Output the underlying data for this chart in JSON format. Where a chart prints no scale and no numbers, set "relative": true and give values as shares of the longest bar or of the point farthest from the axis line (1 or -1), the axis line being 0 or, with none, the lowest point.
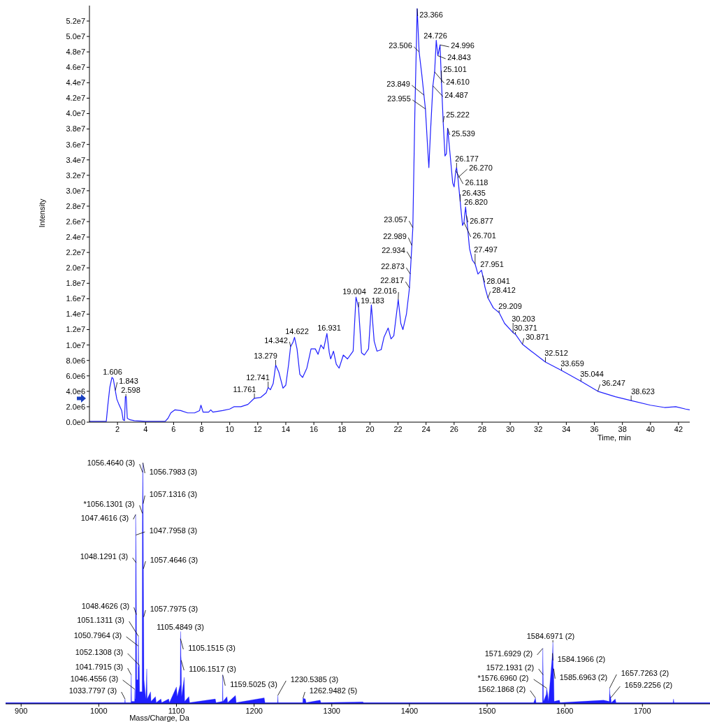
{
  "chart_data": [
    {
      "type": "line",
      "xlabel": "Time, min",
      "ylabel": "Intensity",
      "xlim": [
        0,
        42.8
      ],
      "ylim": [
        0,
        54000000.0
      ],
      "xticks": [
        2,
        4,
        6,
        8,
        10,
        12,
        14,
        16,
        18,
        20,
        22,
        24,
        26,
        28,
        30,
        32,
        34,
        36,
        38,
        40,
        42
      ],
      "yticks": [
        {
          "value": 0,
          "label": "0.0e0"
        },
        {
          "value": 2000000.0,
          "label": "2.0e6"
        },
        {
          "value": 4000000.0,
          "label": "4.0e6"
        },
        {
          "value": 6000000.0,
          "label": "6.0e6"
        },
        {
          "value": 8000000.0,
          "label": "8.0e6"
        },
        {
          "value": 10000000.0,
          "label": "1.0e7"
        },
        {
          "value": 12000000.0,
          "label": "1.2e7"
        },
        {
          "value": 14000000.0,
          "label": "1.4e7"
        },
        {
          "value": 16000000.0,
          "label": "1.6e7"
        },
        {
          "value": 18000000.0,
          "label": "1.8e7"
        },
        {
          "value": 20000000.0,
          "label": "2.0e7"
        },
        {
          "value": 22000000.0,
          "label": "2.2e7"
        },
        {
          "value": 24000000.0,
          "label": "2.4e7"
        },
        {
          "value": 26000000.0,
          "label": "2.6e7"
        },
        {
          "value": 28000000.0,
          "label": "2.8e7"
        },
        {
          "value": 30000000.0,
          "label": "3.0e7"
        },
        {
          "value": 32000000.0,
          "label": "3.2e7"
        },
        {
          "value": 34000000.0,
          "label": "3.4e7"
        },
        {
          "value": 36000000.0,
          "label": "3.6e7"
        },
        {
          "value": 38000000.0,
          "label": "3.8e7"
        },
        {
          "value": 40000000.0,
          "label": "4.0e7"
        },
        {
          "value": 42000000.0,
          "label": "4.2e7"
        },
        {
          "value": 44000000.0,
          "label": "4.4e7"
        },
        {
          "value": 46000000.0,
          "label": "4.6e7"
        },
        {
          "value": 48000000.0,
          "label": "4.8e7"
        },
        {
          "value": 50000000.0,
          "label": "5.0e7"
        },
        {
          "value": 52000000.0,
          "label": "5.2e7"
        }
      ],
      "x": [
        0,
        1.2,
        1.3,
        1.45,
        1.606,
        1.7,
        1.843,
        1.95,
        2.1,
        2.3,
        2.4,
        2.5,
        2.56,
        2.62,
        2.7,
        2.9,
        3.2,
        4,
        5.4,
        5.6,
        5.8,
        6.1,
        6.5,
        7,
        7.5,
        7.85,
        7.95,
        8.1,
        8.5,
        8.65,
        8.8,
        9.5,
        10,
        10.3,
        10.8,
        11.3,
        11.761,
        12.2,
        12.6,
        12.741,
        12.9,
        13.1,
        13.279,
        13.5,
        13.8,
        14,
        14.2,
        14.342,
        14.5,
        14.622,
        14.8,
        15,
        15.2,
        15.5,
        15.8,
        16.1,
        16.3,
        16.5,
        16.7,
        16.931,
        17.1,
        17.2,
        17.4,
        17.6,
        17.8,
        18.1,
        18.4,
        18.8,
        19.004,
        19.183,
        19.4,
        19.6,
        19.9,
        20.1,
        20.3,
        20.5,
        20.8,
        21,
        21.3,
        21.5,
        21.7,
        22.016,
        22.2,
        22.35,
        22.6,
        22.817,
        22.873,
        22.934,
        22.989,
        23.057,
        23.2,
        23.366,
        23.506,
        23.7,
        23.849,
        23.955,
        24.1,
        24.2,
        24.3,
        24.487,
        24.61,
        24.726,
        24.843,
        24.996,
        25.101,
        25.222,
        25.35,
        25.45,
        25.539,
        25.7,
        25.9,
        26,
        26.118,
        26.177,
        26.27,
        26.435,
        26.6,
        26.701,
        26.82,
        26.877,
        27.1,
        27.3,
        27.497,
        27.7,
        27.951,
        28.041,
        28.2,
        28.412,
        28.8,
        29.209,
        29.6,
        30.203,
        30.371,
        30.871,
        31.5,
        32.512,
        33.659,
        35.044,
        36.247,
        37.5,
        38.623,
        40,
        41,
        41.8,
        42.5,
        42.8
      ],
      "series": [
        {
          "color": "#1f1fff",
          "values": [
            100000.0,
            100000.0,
            2000000.0,
            4500000.0,
            5800000.0,
            5600000.0,
            4100000.0,
            3000000.0,
            2300000.0,
            1500000.0,
            300000.0,
            200000.0,
            3300000.0,
            3300000.0,
            500000.0,
            300000.0,
            200000.0,
            100000.0,
            100000.0,
            500000.0,
            1200000.0,
            1600000.0,
            1500000.0,
            1200000.0,
            1200000.0,
            1500000.0,
            2200000.0,
            1300000.0,
            1300000.0,
            1600000.0,
            1300000.0,
            1500000.0,
            1700000.0,
            2000000.0,
            2000000.0,
            2300000.0,
            3100000.0,
            3200000.0,
            3800000.0,
            4500000.0,
            4200000.0,
            5000000.0,
            7400000.0,
            6500000.0,
            4400000.0,
            4800000.0,
            7500000.0,
            9800000.0,
            10300000.0,
            11000000.0,
            9500000.0,
            6200000.0,
            5800000.0,
            7000000.0,
            9500000.0,
            9500000.0,
            8800000.0,
            10000000.0,
            9500000.0,
            11500000.0,
            9000000.0,
            8200000.0,
            9200000.0,
            7500000.0,
            7000000.0,
            8700000.0,
            8200000.0,
            9200000.0,
            16200000.0,
            14900000.0,
            9000000.0,
            8700000.0,
            9500000.0,
            15200000.0,
            10500000.0,
            9200000.0,
            9400000.0,
            11000000.0,
            12200000.0,
            10800000.0,
            11200000.0,
            15900000.0,
            12800000.0,
            12000000.0,
            14000000.0,
            17400000.0,
            19200000.0,
            21200000.0,
            22900000.0,
            25200000.0,
            40000000.0,
            53600000.0,
            48000000.0,
            45000000.0,
            42400000.0,
            40600000.0,
            36000000.0,
            33000000.0,
            37000000.0,
            43600000.0,
            45400000.0,
            49500000.0,
            47500000.0,
            48900000.0,
            44000000.0,
            38900000.0,
            34500000.0,
            34800000.0,
            38100000.0,
            35000000.0,
            31000000.0,
            30500000.0,
            32600000.0,
            33000000.0,
            31700000.0,
            28600000.0,
            25500000.0,
            25900000.0,
            27900000.0,
            26800000.0,
            22500000.0,
            21000000.0,
            20500000.0,
            19200000.0,
            19700000.0,
            19000000.0,
            17500000.0,
            16100000.0,
            14800000.0,
            14200000.0,
            12800000.0,
            11600000.0,
            11400000.0,
            10100000.0,
            9200000.0,
            7800000.0,
            6700000.0,
            5300000.0,
            4000000.0,
            3300000.0,
            2800000.0,
            2200000.0,
            1900000.0,
            2000000.0,
            1700000.0,
            1600000.0
          ]
        }
      ],
      "annotations": [
        {
          "text": "1.606",
          "x": 1.606,
          "y": 5800000.0
        },
        {
          "text": "1.843",
          "x": 1.843,
          "y": 4100000.0
        },
        {
          "text": "2.598",
          "x": 2.598,
          "y": 3300000.0
        },
        {
          "text": "11.761",
          "x": 11.761,
          "y": 3100000.0
        },
        {
          "text": "12.741",
          "x": 12.741,
          "y": 4500000.0
        },
        {
          "text": "13.279",
          "x": 13.279,
          "y": 7400000.0
        },
        {
          "text": "14.342",
          "x": 14.342,
          "y": 9800000.0
        },
        {
          "text": "14.622",
          "x": 14.622,
          "y": 11000000.0
        },
        {
          "text": "16.931",
          "x": 16.931,
          "y": 11500000.0
        },
        {
          "text": "19.004",
          "x": 19.004,
          "y": 16200000.0
        },
        {
          "text": "19.183",
          "x": 19.183,
          "y": 14900000.0
        },
        {
          "text": "22.016",
          "x": 22.016,
          "y": 15900000.0
        },
        {
          "text": "22.817",
          "x": 22.817,
          "y": 17400000.0
        },
        {
          "text": "22.873",
          "x": 22.873,
          "y": 19200000.0
        },
        {
          "text": "22.934",
          "x": 22.934,
          "y": 21200000.0
        },
        {
          "text": "22.989",
          "x": 22.989,
          "y": 22900000.0
        },
        {
          "text": "23.057",
          "x": 23.057,
          "y": 25200000.0
        },
        {
          "text": "23.366",
          "x": 23.366,
          "y": 53600000.0
        },
        {
          "text": "23.506",
          "x": 23.506,
          "y": 48000000.0
        },
        {
          "text": "23.849",
          "x": 23.849,
          "y": 42400000.0
        },
        {
          "text": "23.955",
          "x": 23.955,
          "y": 40600000.0
        },
        {
          "text": "24.726",
          "x": 24.726,
          "y": 49500000.0
        },
        {
          "text": "24.996",
          "x": 24.996,
          "y": 48900000.0
        },
        {
          "text": "24.843",
          "x": 24.843,
          "y": 47500000.0
        },
        {
          "text": "25.101",
          "x": 25.101,
          "y": 44000000.0
        },
        {
          "text": "24.610",
          "x": 24.61,
          "y": 45400000.0
        },
        {
          "text": "24.487",
          "x": 24.487,
          "y": 43600000.0
        },
        {
          "text": "25.222",
          "x": 25.222,
          "y": 38900000.0
        },
        {
          "text": "25.539",
          "x": 25.539,
          "y": 38100000.0
        },
        {
          "text": "26.177",
          "x": 26.177,
          "y": 33000000.0
        },
        {
          "text": "26.270",
          "x": 26.27,
          "y": 31700000.0
        },
        {
          "text": "26.118",
          "x": 26.118,
          "y": 32600000.0
        },
        {
          "text": "26.435",
          "x": 26.435,
          "y": 28600000.0
        },
        {
          "text": "26.820",
          "x": 26.82,
          "y": 27900000.0
        },
        {
          "text": "26.877",
          "x": 26.877,
          "y": 26800000.0
        },
        {
          "text": "26.701",
          "x": 26.701,
          "y": 25900000.0
        },
        {
          "text": "27.497",
          "x": 27.497,
          "y": 20500000.0
        },
        {
          "text": "27.951",
          "x": 27.951,
          "y": 19700000.0
        },
        {
          "text": "28.041",
          "x": 28.041,
          "y": 19000000.0
        },
        {
          "text": "28.412",
          "x": 28.412,
          "y": 16100000.0
        },
        {
          "text": "29.209",
          "x": 29.209,
          "y": 14200000.0
        },
        {
          "text": "30.203",
          "x": 30.203,
          "y": 11600000.0
        },
        {
          "text": "30.371",
          "x": 30.371,
          "y": 11400000.0
        },
        {
          "text": "30.871",
          "x": 30.871,
          "y": 10100000.0
        },
        {
          "text": "32.512",
          "x": 32.512,
          "y": 7800000.0
        },
        {
          "text": "33.659",
          "x": 33.659,
          "y": 6700000.0
        },
        {
          "text": "35.044",
          "x": 35.044,
          "y": 5300000.0
        },
        {
          "text": "36.247",
          "x": 36.247,
          "y": 4000000.0
        },
        {
          "text": "38.623",
          "x": 38.623,
          "y": 2800000.0
        }
      ]
    },
    {
      "type": "area",
      "relative": true,
      "xlabel": "Mass/Charge, Da",
      "xlim": [
        880,
        1787
      ],
      "xticks": [
        900,
        1000,
        1100,
        1200,
        1300,
        1400,
        1500,
        1600,
        1700
      ],
      "x": [
        880,
        1020,
        1033.4,
        1033.78,
        1034.2,
        1041.4,
        1041.79,
        1042.2,
        1046.1,
        1046.46,
        1046.8,
        1047.2,
        1047.46,
        1047.8,
        1048.13,
        1048.46,
        1048.8,
        1050.5,
        1050.8,
        1051.13,
        1051.5,
        1052.13,
        1052.6,
        1055.8,
        1056.13,
        1056.46,
        1056.8,
        1057.13,
        1057.46,
        1057.8,
        1058.2,
        1060.5,
        1061.8,
        1062.3,
        1066.7,
        1067.3,
        1073,
        1074,
        1080,
        1081,
        1090,
        1091,
        1100,
        1101,
        1104.8,
        1105.15,
        1105.48,
        1105.8,
        1106.15,
        1106.6,
        1110,
        1110.6,
        1116,
        1117,
        1150,
        1151,
        1159.2,
        1159.5,
        1160,
        1165,
        1166,
        1176,
        1177,
        1213,
        1214,
        1230.2,
        1230.54,
        1231,
        1262.6,
        1262.95,
        1266,
        1267,
        1285,
        1286,
        1340,
        1341,
        1560,
        1562.19,
        1563,
        1571.3,
        1571.69,
        1572.19,
        1572.7,
        1576.2,
        1576.7,
        1578,
        1579,
        1584.2,
        1584.7,
        1585.2,
        1585.7,
        1586.3,
        1593,
        1594,
        1650,
        1657.3,
        1657.73,
        1658.2,
        1659.23,
        1660,
        1665,
        1666,
        1739.5,
        1740,
        1740.6,
        1787
      ],
      "series": [
        {
          "color": "#1f1fff",
          "values": [
            0.005,
            0.005,
            0.005,
            0.02,
            0.005,
            0.005,
            0.12,
            0.01,
            0.01,
            0.06,
            0.02,
            0.02,
            0.785,
            0.7,
            0.585,
            0.37,
            0.1,
            0.1,
            0.24,
            0.28,
            0.15,
            0.16,
            0.05,
            0.05,
            0.79,
            0.96,
            1,
            0.83,
            0.56,
            0.36,
            0.1,
            0.02,
            0.145,
            0.02,
            0.05,
            0.01,
            0.03,
            0.005,
            0.02,
            0.005,
            0.02,
            0.005,
            0.07,
            0.03,
            0.08,
            0.27,
            0.3,
            0.2,
            0.18,
            0.03,
            0.11,
            0.01,
            0.03,
            0.005,
            0.02,
            0.005,
            0.01,
            0.12,
            0.01,
            0.03,
            0.005,
            0.035,
            0.005,
            0.025,
            0.005,
            0.005,
            0.035,
            0.005,
            0.005,
            0.023,
            0.02,
            0.005,
            0.015,
            0.005,
            0.008,
            0.005,
            0.005,
            0.025,
            0.005,
            0.005,
            0.23,
            0.12,
            0.01,
            0.04,
            0.065,
            0.04,
            0.01,
            0.21,
            0.255,
            0.15,
            0.145,
            0.01,
            0.015,
            0.005,
            0.015,
            0.01,
            0.065,
            0.04,
            0.025,
            0.005,
            0.02,
            0.005,
            0.005,
            0.02,
            0.005,
            0.005
          ]
        }
      ],
      "annotations": [
        {
          "text": "1056.4640 (3)",
          "x": 1056.464,
          "y": 0.96
        },
        {
          "text": "1056.7983 (3)",
          "x": 1056.7983,
          "y": 1
        },
        {
          "text": "1057.1316 (3)",
          "x": 1057.1316,
          "y": 0.83
        },
        {
          "text": "*1056.1301 (3)",
          "x": 1056.1301,
          "y": 0.79
        },
        {
          "text": "1047.4616 (3)",
          "x": 1047.4616,
          "y": 0.785
        },
        {
          "text": "1047.7958 (3)",
          "x": 1047.7958,
          "y": 0.7
        },
        {
          "text": "1048.1291 (3)",
          "x": 1048.1291,
          "y": 0.585
        },
        {
          "text": "1057.4646 (3)",
          "x": 1057.4646,
          "y": 0.56
        },
        {
          "text": "1048.4626 (3)",
          "x": 1048.4626,
          "y": 0.37
        },
        {
          "text": "1057.7975 (3)",
          "x": 1057.7975,
          "y": 0.36
        },
        {
          "text": "1051.1311 (3)",
          "x": 1051.1311,
          "y": 0.28
        },
        {
          "text": "1050.7964 (3)",
          "x": 1050.7964,
          "y": 0.24
        },
        {
          "text": "1052.1308 (3)",
          "x": 1052.1308,
          "y": 0.16
        },
        {
          "text": "1041.7915 (3)",
          "x": 1041.7915,
          "y": 0.12
        },
        {
          "text": "1046.4556 (3)",
          "x": 1046.4556,
          "y": 0.06
        },
        {
          "text": "1033.7797 (3)",
          "x": 1033.7797,
          "y": 0.02
        },
        {
          "text": "1105.4849 (3)",
          "x": 1105.4849,
          "y": 0.3
        },
        {
          "text": "1105.1515 (3)",
          "x": 1105.1515,
          "y": 0.27
        },
        {
          "text": "1106.1517 (3)",
          "x": 1106.1517,
          "y": 0.18
        },
        {
          "text": "1159.5025 (3)",
          "x": 1159.5025,
          "y": 0.12
        },
        {
          "text": "1230.5385 (3)",
          "x": 1230.5385,
          "y": 0.035
        },
        {
          "text": "1262.9482 (5)",
          "x": 1262.9482,
          "y": 0.023
        },
        {
          "text": "1584.6971 (2)",
          "x": 1584.6971,
          "y": 0.255
        },
        {
          "text": "1571.6929 (2)",
          "x": 1571.6929,
          "y": 0.23
        },
        {
          "text": "1584.1966 (2)",
          "x": 1584.1966,
          "y": 0.21
        },
        {
          "text": "1572.1931 (2)",
          "x": 1572.1931,
          "y": 0.12
        },
        {
          "text": "1585.6963 (2)",
          "x": 1585.6963,
          "y": 0.145
        },
        {
          "text": "*1576.6960 (2)",
          "x": 1576.696,
          "y": 0.065
        },
        {
          "text": "1562.1868 (2)",
          "x": 1562.1868,
          "y": 0.025
        },
        {
          "text": "1657.7263 (2)",
          "x": 1657.7263,
          "y": 0.065
        },
        {
          "text": "1659.2256 (2)",
          "x": 1659.2256,
          "y": 0.025
        }
      ]
    }
  ]
}
